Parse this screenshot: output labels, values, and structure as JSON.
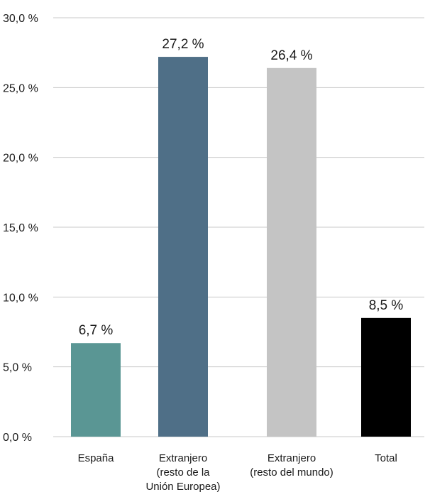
{
  "chart_data": {
    "type": "bar",
    "title": "",
    "xlabel": "",
    "ylabel": "",
    "ylim": [
      0,
      30
    ],
    "y_ticks": [
      0,
      5,
      10,
      15,
      20,
      25,
      30
    ],
    "y_tick_labels": [
      "0,0 %",
      "5,0 %",
      "10,0 %",
      "15,0 %",
      "20,0 %",
      "25,0 %",
      "30,0 %"
    ],
    "grid": true,
    "legend": "none",
    "categories": [
      [
        "España"
      ],
      [
        "Extranjero",
        "(resto de la",
        "Unión Europea)"
      ],
      [
        "Extranjero",
        "(resto del mundo)"
      ],
      [
        "Total"
      ]
    ],
    "values": [
      6.7,
      27.2,
      26.4,
      8.5
    ],
    "value_labels": [
      "6,7 %",
      "27,2 %",
      "26,4 %",
      "8,5 %"
    ],
    "colors": [
      "#5a9694",
      "#4f6f87",
      "#c4c4c4",
      "#000000"
    ]
  }
}
